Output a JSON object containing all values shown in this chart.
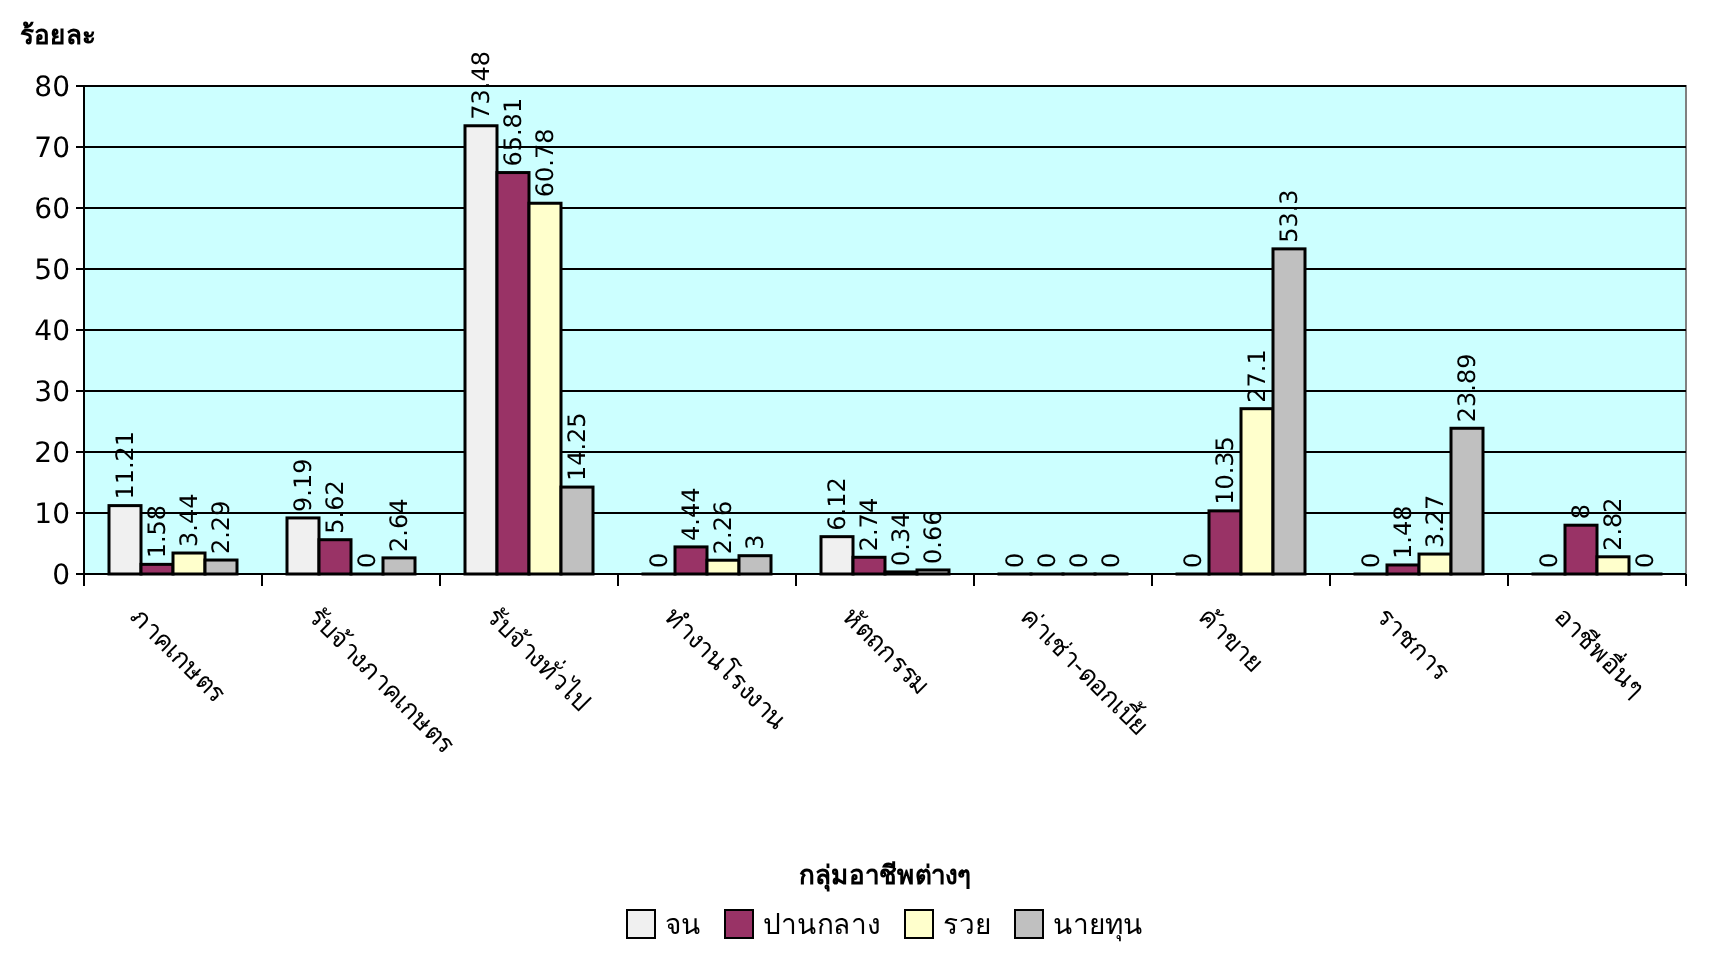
{
  "chart_data": {
    "type": "bar",
    "ylabel": "ร้อยละ",
    "xlabel": "กลุ่มอาชีพต่างๆ",
    "categories": [
      "ภาคเกษตร",
      "รับจ้างภาคเกษตร",
      "รับจ้างทั่วไป",
      "ทำงานโรงงาน",
      "หัตถกรรม",
      "ค่าเช่า-ดอกเบี้ย",
      "ค้าขาย",
      "ราชการ",
      "อาชีพอื่นๆ"
    ],
    "series": [
      {
        "name": "จน",
        "color": "#f0f0f0",
        "values": [
          11.21,
          9.19,
          73.48,
          0,
          6.12,
          0,
          0,
          0,
          0
        ]
      },
      {
        "name": "ปานกลาง",
        "color": "#993366",
        "values": [
          1.58,
          5.62,
          65.81,
          4.44,
          2.74,
          0,
          10.35,
          1.48,
          8
        ]
      },
      {
        "name": "รวย",
        "color": "#ffffcc",
        "values": [
          3.44,
          0,
          60.78,
          2.26,
          0.34,
          0,
          27.1,
          3.27,
          2.82
        ]
      },
      {
        "name": "นายทุน",
        "color": "#c0c0c0",
        "values": [
          2.29,
          2.64,
          14.25,
          3,
          0.66,
          0,
          53.3,
          23.89,
          0
        ]
      }
    ],
    "ylim": [
      0,
      80
    ],
    "yticks": [
      0,
      10,
      20,
      30,
      40,
      50,
      60,
      70,
      80
    ],
    "grid": "y",
    "legend": "bottom",
    "data_labels": true
  }
}
